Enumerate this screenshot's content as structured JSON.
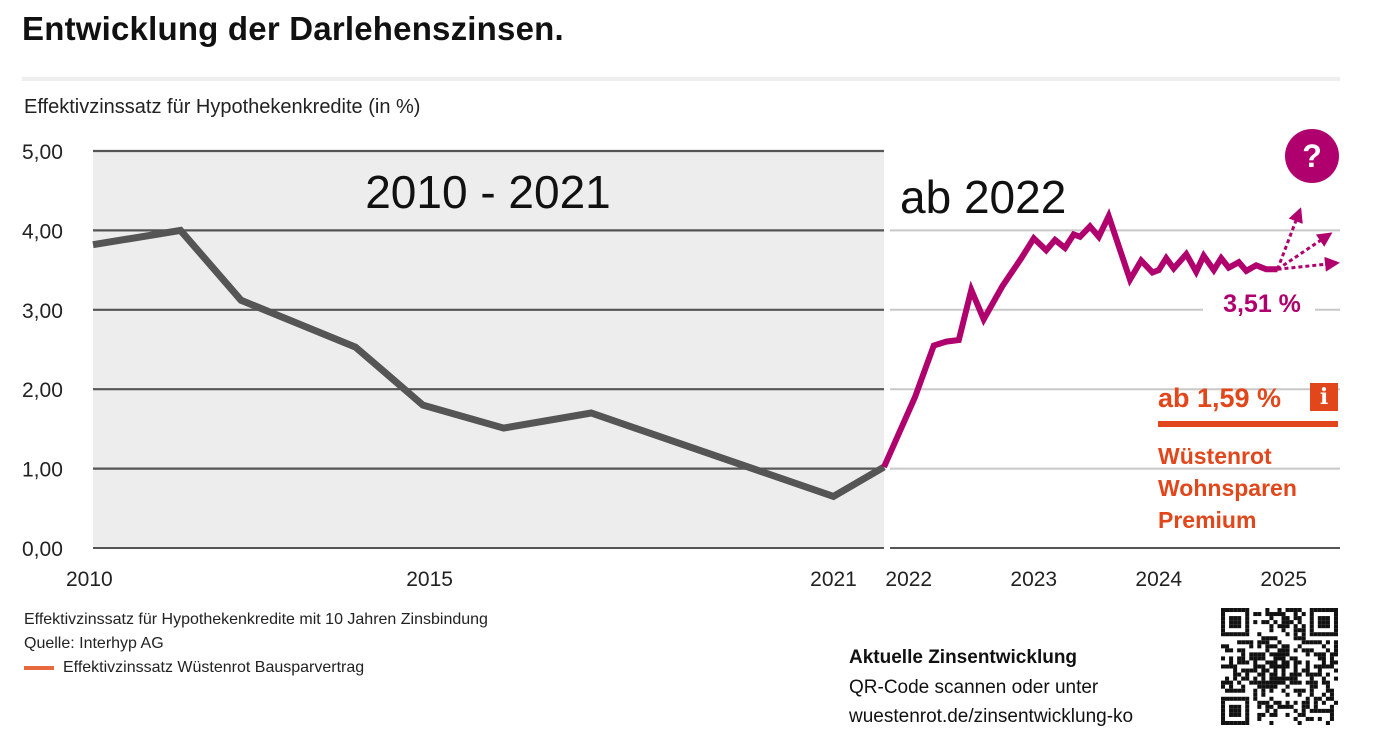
{
  "title": "Entwicklung der Darlehenszinsen.",
  "subtitle": "Effektivzinssatz für Hypothekenkredite (in %)",
  "colors": {
    "historic": "#555555",
    "current": "#b0006e",
    "promo": "#e2471c",
    "legend": "#e8693f",
    "grid": "#555555",
    "shade": "#ededed"
  },
  "chart_data": [
    {
      "type": "line",
      "panel_label": "2010 - 2021",
      "x_ticks": [
        "2010",
        "2015",
        "2021"
      ],
      "y_ticks": [
        "0,00",
        "1,00",
        "2,00",
        "3,00",
        "4,00",
        "5,00"
      ],
      "ylim": [
        0,
        5
      ],
      "xlim": [
        2010,
        2021.75
      ],
      "grid": true,
      "shaded_background": true,
      "series": [
        {
          "x": [
            2010,
            2011.3,
            2012.2,
            2013.9,
            2014.9,
            2016.1,
            2017.4,
            2021,
            2021.75
          ],
          "y": [
            3.82,
            4.0,
            3.12,
            2.53,
            1.8,
            1.51,
            1.7,
            0.65,
            1.02
          ]
        }
      ]
    },
    {
      "type": "line",
      "panel_label": "ab 2022",
      "x_ticks": [
        "2022",
        "2023",
        "2024",
        "2025"
      ],
      "ylim": [
        0,
        5
      ],
      "xlim": [
        2021.85,
        2025.45
      ],
      "grid": true,
      "series": [
        {
          "x": [
            2021.85,
            2022.05,
            2022.2,
            2022.3,
            2022.4,
            2022.5,
            2022.6,
            2022.75,
            2022.9,
            2023.0,
            2023.1,
            2023.17,
            2023.25,
            2023.32,
            2023.37,
            2023.45,
            2023.52,
            2023.6,
            2023.68,
            2023.77,
            2023.86,
            2023.95,
            2024.0,
            2024.06,
            2024.12,
            2024.22,
            2024.3,
            2024.36,
            2024.44,
            2024.5,
            2024.56,
            2024.64,
            2024.7,
            2024.78,
            2024.86,
            2024.95
          ],
          "y": [
            1.02,
            1.9,
            2.55,
            2.6,
            2.62,
            3.25,
            2.88,
            3.3,
            3.65,
            3.9,
            3.75,
            3.88,
            3.78,
            3.95,
            3.92,
            4.05,
            3.92,
            4.18,
            3.8,
            3.38,
            3.62,
            3.47,
            3.5,
            3.65,
            3.52,
            3.7,
            3.48,
            3.68,
            3.5,
            3.65,
            3.53,
            3.6,
            3.49,
            3.56,
            3.51,
            3.51
          ]
        }
      ],
      "end_value_label": "3,51 %",
      "question_badge": "?"
    }
  ],
  "promo": {
    "rate": "ab 1,59 %",
    "info_icon": "i",
    "name_line1": "Wüstenrot",
    "name_line2": "Wohnsparen",
    "name_line3": "Premium"
  },
  "footnotes": {
    "line1": "Effektivzinssatz für Hypothekenkredite mit 10 Jahren Zinsbindung",
    "line2": "Quelle: Interhyp AG",
    "legend": "Effektivzinssatz Wüstenrot Bausparvertrag"
  },
  "cta": {
    "heading": "Aktuelle Zinsentwicklung",
    "line1": "QR-Code scannen oder unter",
    "line2": "wuestenrot.de/zinsentwicklung-ko",
    "qr_icon": "qr-code-icon"
  }
}
